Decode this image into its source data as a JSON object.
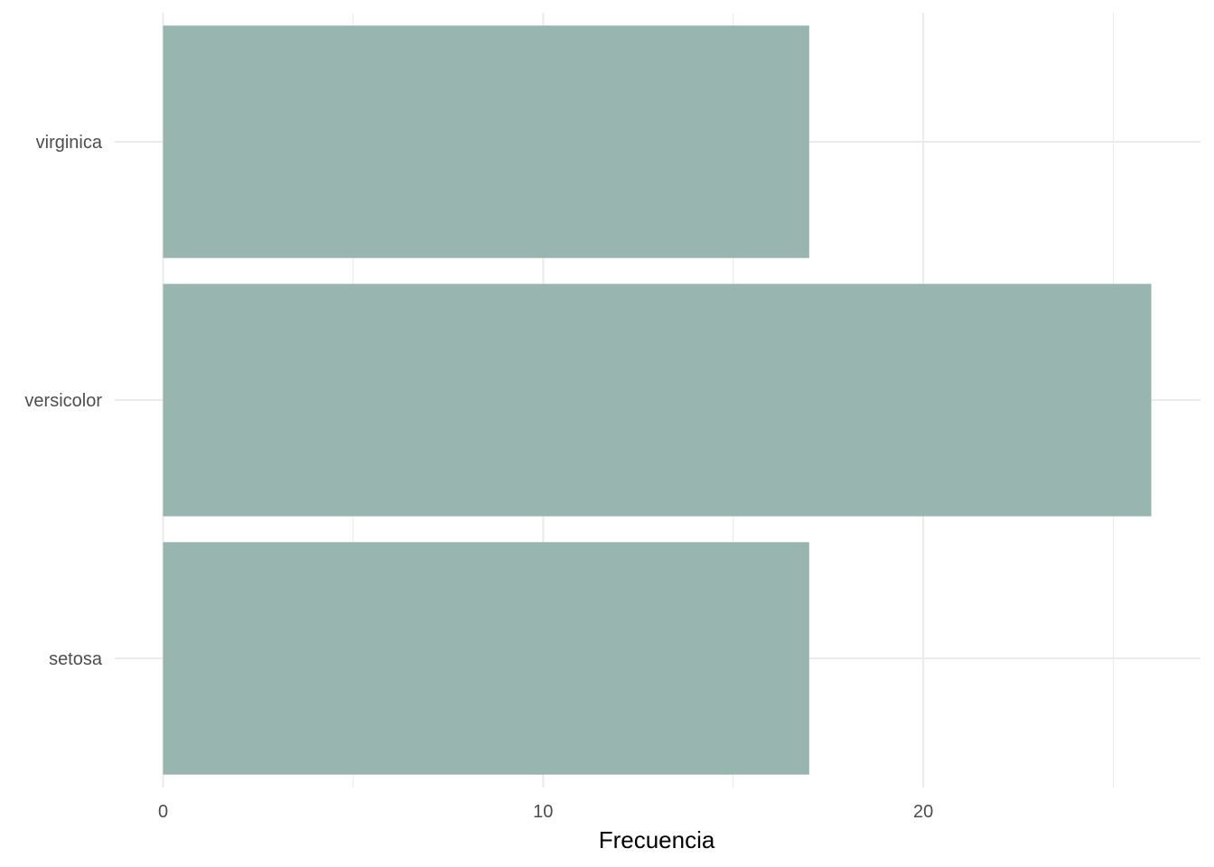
{
  "chart_data": {
    "type": "bar",
    "orientation": "horizontal",
    "categories": [
      "setosa",
      "versicolor",
      "virginica"
    ],
    "values": [
      17,
      26,
      17
    ],
    "title": "",
    "xlabel": "Frecuencia",
    "ylabel": "",
    "xlim": [
      0,
      26
    ],
    "xticks": [
      0,
      10,
      20
    ],
    "xtick_labels": [
      "0",
      "10",
      "20"
    ],
    "grid": true,
    "legend": "none",
    "colors": {
      "bar": "#98b5b0",
      "grid": "#ebebeb",
      "tick_text": "#4d4d4d",
      "axis_title": "#000000",
      "background": "#ffffff"
    }
  }
}
